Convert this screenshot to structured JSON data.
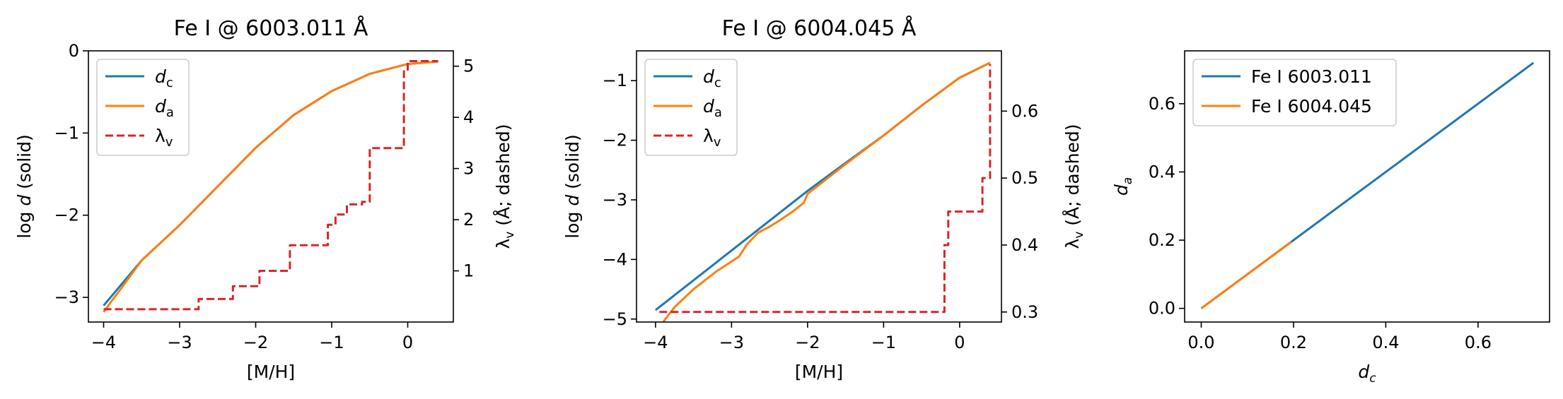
{
  "chart_data": [
    {
      "type": "line",
      "title": "Fe I @ 6003.011 Å",
      "xlabel": "[M/H]",
      "ylabel": "log d (solid)",
      "ylabel_right": "λv (Å; dashed)",
      "xlim": [
        -4.2,
        0.6
      ],
      "ylim": [
        -3.3,
        0.0
      ],
      "y2lim": [
        0.0,
        5.3
      ],
      "xticks": [
        -4,
        -3,
        -2,
        -1,
        0
      ],
      "xticklabels": [
        "−4",
        "−3",
        "−2",
        "−1",
        "0"
      ],
      "yticks": [
        -3,
        -2,
        -1,
        0
      ],
      "yticklabels": [
        "−3",
        "−2",
        "−1",
        "0"
      ],
      "y2ticks": [
        1,
        2,
        3,
        4,
        5
      ],
      "y2ticklabels": [
        "1",
        "2",
        "3",
        "4",
        "5"
      ],
      "legend": {
        "position": "top-left",
        "entries": [
          {
            "label": "d_c",
            "color": "#1f77b4",
            "style": "solid"
          },
          {
            "label": "d_a",
            "color": "#ff7f0e",
            "style": "solid"
          },
          {
            "label": "λ_v",
            "color": "#d62728",
            "style": "dashed"
          }
        ]
      },
      "series": [
        {
          "name": "d_c",
          "axis": "left",
          "color": "#1f77b4",
          "style": "solid",
          "x": [
            -4.0,
            -3.5,
            -3.0,
            -2.5,
            -2.0,
            -1.5,
            -1.0,
            -0.5,
            0.0,
            0.4
          ],
          "y": [
            -3.1,
            -2.55,
            -2.12,
            -1.65,
            -1.18,
            -0.78,
            -0.49,
            -0.28,
            -0.16,
            -0.13
          ]
        },
        {
          "name": "d_a",
          "axis": "left",
          "color": "#ff7f0e",
          "style": "solid",
          "x": [
            -4.0,
            -3.9,
            -3.8,
            -3.5,
            -3.0,
            -2.5,
            -2.0,
            -1.5,
            -1.0,
            -0.5,
            0.0,
            0.4
          ],
          "y": [
            -3.18,
            -3.05,
            -2.93,
            -2.55,
            -2.12,
            -1.65,
            -1.18,
            -0.78,
            -0.49,
            -0.28,
            -0.16,
            -0.13
          ]
        },
        {
          "name": "λ_v",
          "axis": "right",
          "color": "#d62728",
          "style": "dashed",
          "x": [
            -4.0,
            -2.75,
            -2.75,
            -2.3,
            -2.3,
            -1.95,
            -1.95,
            -1.55,
            -1.55,
            -1.05,
            -1.05,
            -0.95,
            -0.95,
            -0.8,
            -0.8,
            -0.6,
            -0.6,
            -0.5,
            -0.5,
            -0.05,
            -0.05,
            0.0,
            0.0,
            0.4
          ],
          "y": [
            0.25,
            0.25,
            0.45,
            0.45,
            0.7,
            0.7,
            1.0,
            1.0,
            1.5,
            1.5,
            1.9,
            1.9,
            2.1,
            2.1,
            2.3,
            2.3,
            2.35,
            2.35,
            3.4,
            3.4,
            4.9,
            4.9,
            5.1,
            5.1
          ]
        }
      ]
    },
    {
      "type": "line",
      "title": "Fe I @ 6004.045 Å",
      "xlabel": "[M/H]",
      "ylabel": "log d (solid)",
      "ylabel_right": "λv (Å; dashed)",
      "xlim": [
        -4.25,
        0.55
      ],
      "ylim": [
        -5.05,
        -0.5
      ],
      "y2lim": [
        0.285,
        0.69
      ],
      "xticks": [
        -4,
        -3,
        -2,
        -1,
        0
      ],
      "xticklabels": [
        "−4",
        "−3",
        "−2",
        "−1",
        "0"
      ],
      "yticks": [
        -5,
        -4,
        -3,
        -2,
        -1
      ],
      "yticklabels": [
        "−5",
        "−4",
        "−3",
        "−2",
        "−1"
      ],
      "y2ticks": [
        0.3,
        0.4,
        0.5,
        0.6
      ],
      "y2ticklabels": [
        "0.3",
        "0.4",
        "0.5",
        "0.6"
      ],
      "legend": {
        "position": "top-left",
        "entries": [
          {
            "label": "d_c",
            "color": "#1f77b4",
            "style": "solid"
          },
          {
            "label": "d_a",
            "color": "#ff7f0e",
            "style": "solid"
          },
          {
            "label": "λ_v",
            "color": "#d62728",
            "style": "dashed"
          }
        ]
      },
      "series": [
        {
          "name": "d_c",
          "axis": "left",
          "color": "#1f77b4",
          "style": "solid",
          "x": [
            -4.0,
            -3.0,
            -2.0,
            -1.5,
            -1.0,
            -0.5,
            0.0,
            0.4
          ],
          "y": [
            -4.85,
            -3.85,
            -2.85,
            -2.38,
            -1.92,
            -1.42,
            -0.95,
            -0.7
          ]
        },
        {
          "name": "d_a",
          "axis": "left",
          "color": "#ff7f0e",
          "style": "solid",
          "x": [
            -3.9,
            -3.75,
            -3.5,
            -3.2,
            -2.9,
            -2.8,
            -2.65,
            -2.5,
            -2.35,
            -2.2,
            -2.05,
            -2.0,
            -1.5,
            -1.0,
            -0.5,
            0.0,
            0.4
          ],
          "y": [
            -5.05,
            -4.8,
            -4.5,
            -4.2,
            -3.95,
            -3.75,
            -3.55,
            -3.45,
            -3.33,
            -3.2,
            -3.05,
            -2.9,
            -2.4,
            -1.92,
            -1.42,
            -0.95,
            -0.7
          ]
        },
        {
          "name": "λ_v",
          "axis": "right",
          "color": "#d62728",
          "style": "dashed",
          "x": [
            -3.95,
            -0.2,
            -0.2,
            -0.15,
            -0.15,
            0.3,
            0.3,
            0.4,
            0.4
          ],
          "y": [
            0.3,
            0.3,
            0.4,
            0.4,
            0.45,
            0.45,
            0.5,
            0.5,
            0.67
          ]
        }
      ]
    },
    {
      "type": "line",
      "title": "",
      "xlabel": "d_c",
      "ylabel": "d_a",
      "xlim": [
        -0.036,
        0.755
      ],
      "ylim": [
        -0.04,
        0.755
      ],
      "xticks": [
        0.0,
        0.2,
        0.4,
        0.6
      ],
      "xticklabels": [
        "0.0",
        "0.2",
        "0.4",
        "0.6"
      ],
      "yticks": [
        0.0,
        0.2,
        0.4,
        0.6
      ],
      "yticklabels": [
        "0.0",
        "0.2",
        "0.4",
        "0.6"
      ],
      "legend": {
        "position": "top-left",
        "entries": [
          {
            "label": "Fe I 6003.011",
            "color": "#1f77b4",
            "style": "solid"
          },
          {
            "label": "Fe I 6004.045",
            "color": "#ff7f0e",
            "style": "solid"
          }
        ]
      },
      "series": [
        {
          "name": "Fe I 6003.011",
          "axis": "left",
          "color": "#1f77b4",
          "style": "solid",
          "x": [
            0.0,
            0.72
          ],
          "y": [
            0.0,
            0.72
          ]
        },
        {
          "name": "Fe I 6004.045",
          "axis": "left",
          "color": "#ff7f0e",
          "style": "solid",
          "x": [
            0.0,
            0.195
          ],
          "y": [
            0.0,
            0.195
          ]
        }
      ]
    }
  ]
}
